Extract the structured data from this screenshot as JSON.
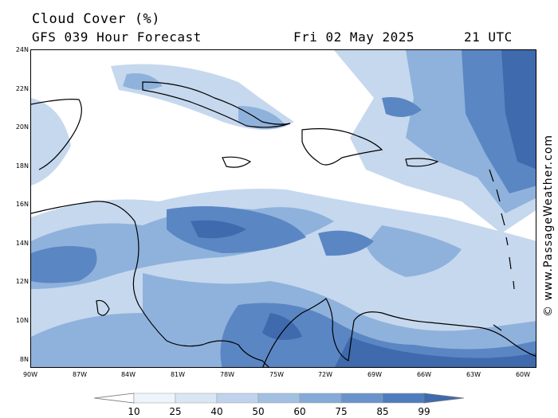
{
  "header": {
    "title": "Cloud Cover (%)",
    "subtitle": "GFS 039 Hour Forecast",
    "date": "Fri 02 May 2025",
    "time": "21 UTC"
  },
  "watermark": "© www.PassageWeather.com",
  "map": {
    "lat_labels": [
      "24N",
      "22N",
      "20N",
      "18N",
      "16N",
      "14N",
      "12N",
      "10N",
      "8N"
    ],
    "lon_labels": [
      "90W",
      "87W",
      "84W",
      "81W",
      "78W",
      "75W",
      "72W",
      "69W",
      "66W",
      "63W",
      "60W"
    ],
    "lat_range": [
      7.5,
      24
    ],
    "lon_range": [
      -90,
      -59.5
    ],
    "colors": {
      "background": "#ffffff",
      "cloud_light": "#c6d8ee",
      "cloud_medium": "#8fb2dc",
      "cloud_dark": "#5b86c4",
      "cloud_darkest": "#3f6aad",
      "coastline": "#000000"
    }
  },
  "legend": {
    "labels": [
      "10",
      "25",
      "40",
      "50",
      "60",
      "75",
      "85",
      "99"
    ],
    "colors": [
      "#ffffff",
      "#eef4fb",
      "#d9e6f4",
      "#bfd3ec",
      "#a3bfe2",
      "#86aad7",
      "#6a93cb",
      "#4e7cbd",
      "#3f6aad"
    ]
  }
}
